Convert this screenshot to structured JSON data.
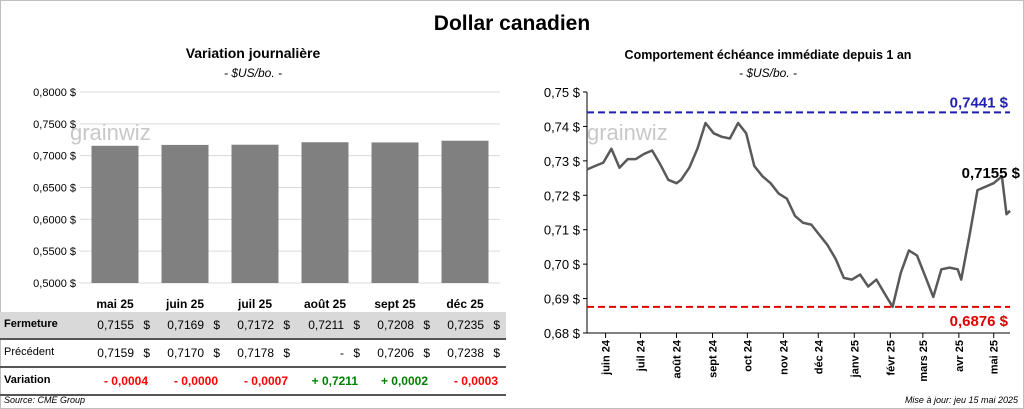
{
  "title": "Dollar canadien",
  "left_panel": {
    "title": "Variation  journalière",
    "unit": "- $US/bo. -"
  },
  "right_panel": {
    "title": "Comportement échéance immédiate depuis 1 an",
    "unit": "- $US/bo. -"
  },
  "watermark": "grainwiz",
  "table": {
    "rows": [
      {
        "label": "Fermeture",
        "values": [
          "0,7155",
          "0,7169",
          "0,7172",
          "0,7211",
          "0,7208",
          "0,7235"
        ],
        "currency": "$"
      },
      {
        "label": "Précédent",
        "values": [
          "0,7159",
          "0,7170",
          "0,7178",
          "-",
          "0,7206",
          "0,7238"
        ],
        "currency": "$"
      },
      {
        "label": "Variation",
        "values": [
          "- 0,0004",
          "- 0,0000",
          "- 0,0007",
          "+ 0,7211",
          "+ 0,0002",
          "- 0,0003"
        ],
        "signs": [
          "neg",
          "neg",
          "neg",
          "pos",
          "pos",
          "neg"
        ]
      }
    ]
  },
  "source": "Source: CME Group",
  "updated": "Mise à jour: jeu 15 mai 2025",
  "colors": {
    "bar": "#808080",
    "line": "#595959",
    "high_line": "#1f1fb4",
    "low_line": "#e00000",
    "negative": "#ff0000",
    "positive": "#008000"
  },
  "chart_data": [
    {
      "type": "bar",
      "title": "Variation  journalière",
      "subtitle": "- $US/bo. -",
      "categories": [
        "mai 25",
        "juin 25",
        "juil 25",
        "août 25",
        "sept 25",
        "déc 25"
      ],
      "values": [
        0.7155,
        0.7169,
        0.7172,
        0.7211,
        0.7208,
        0.7235
      ],
      "ylim": [
        0.5,
        0.8
      ],
      "yticks": [
        0.5,
        0.55,
        0.6,
        0.65,
        0.7,
        0.75,
        0.8
      ],
      "ytick_labels": [
        "0,5000 $",
        "0,5500 $",
        "0,6000 $",
        "0,6500 $",
        "0,7000 $",
        "0,7500 $",
        "0,8000 $"
      ],
      "grid": true
    },
    {
      "type": "line",
      "title": "Comportement échéance immédiate depuis 1 an",
      "subtitle": "- $US/bo. -",
      "x_dates": [
        "2024-05-16",
        "2024-05-23",
        "2024-05-30",
        "2024-06-06",
        "2024-06-13",
        "2024-06-20",
        "2024-06-27",
        "2024-07-04",
        "2024-07-11",
        "2024-07-18",
        "2024-07-25",
        "2024-08-01",
        "2024-08-05",
        "2024-08-12",
        "2024-08-19",
        "2024-08-26",
        "2024-09-02",
        "2024-09-09",
        "2024-09-16",
        "2024-09-23",
        "2024-09-30",
        "2024-10-07",
        "2024-10-14",
        "2024-10-21",
        "2024-10-28",
        "2024-11-04",
        "2024-11-11",
        "2024-11-18",
        "2024-11-25",
        "2024-12-02",
        "2024-12-09",
        "2024-12-16",
        "2024-12-23",
        "2024-12-30",
        "2025-01-06",
        "2025-01-13",
        "2025-01-20",
        "2025-01-27",
        "2025-02-03",
        "2025-02-10",
        "2025-02-17",
        "2025-02-24",
        "2025-03-03",
        "2025-03-10",
        "2025-03-17",
        "2025-03-24",
        "2025-03-31",
        "2025-04-03",
        "2025-04-10",
        "2025-04-17",
        "2025-04-24",
        "2025-05-01",
        "2025-05-08",
        "2025-05-12",
        "2025-05-15"
      ],
      "values": [
        0.7275,
        0.7285,
        0.7295,
        0.7335,
        0.728,
        0.7305,
        0.7305,
        0.732,
        0.733,
        0.729,
        0.7245,
        0.7235,
        0.7245,
        0.728,
        0.7335,
        0.741,
        0.738,
        0.737,
        0.7365,
        0.741,
        0.738,
        0.7285,
        0.7255,
        0.7235,
        0.7205,
        0.719,
        0.714,
        0.712,
        0.7115,
        0.7085,
        0.7055,
        0.7015,
        0.696,
        0.6955,
        0.697,
        0.6935,
        0.6955,
        0.6915,
        0.6876,
        0.6975,
        0.704,
        0.7025,
        0.6965,
        0.6905,
        0.6985,
        0.699,
        0.6985,
        0.6955,
        0.708,
        0.7215,
        0.7225,
        0.7235,
        0.7255,
        0.7145,
        0.7155
      ],
      "ylim": [
        0.68,
        0.75
      ],
      "yticks": [
        0.68,
        0.69,
        0.7,
        0.71,
        0.72,
        0.73,
        0.74,
        0.75
      ],
      "ytick_labels": [
        "0,68 $",
        "0,69 $",
        "0,70 $",
        "0,71 $",
        "0,72 $",
        "0,73 $",
        "0,74 $",
        "0,75 $"
      ],
      "xtick_dates": [
        "2024-06-01",
        "2024-07-01",
        "2024-08-01",
        "2024-09-01",
        "2024-10-01",
        "2024-11-01",
        "2024-12-01",
        "2025-01-01",
        "2025-02-01",
        "2025-03-01",
        "2025-04-01",
        "2025-05-01"
      ],
      "xtick_labels": [
        "juin 24",
        "juil 24",
        "août 24",
        "sept 24",
        "oct 24",
        "nov 24",
        "déc 24",
        "janv 25",
        "févr 25",
        "mars 25",
        "avr 25",
        "mai 25"
      ],
      "high": {
        "value": 0.7441,
        "label": "0,7441 $"
      },
      "low": {
        "value": 0.6876,
        "label": "0,6876 $"
      },
      "last": {
        "value": 0.7155,
        "label": "0,7155 $"
      },
      "grid": false
    }
  ]
}
